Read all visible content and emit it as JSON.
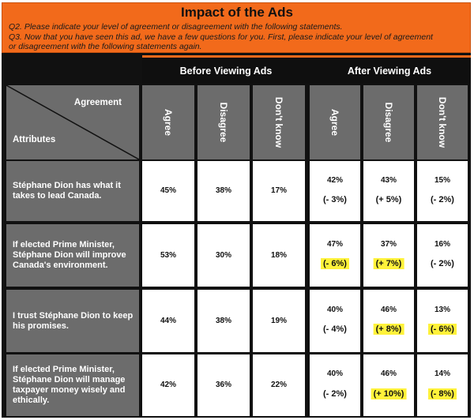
{
  "title": "Impact of the Ads",
  "q2": "Q2. Please indicate your level of agreement or disagreement with the following statements.",
  "q3_line1": "Q3. Now that you have seen this ad, we have a few questions for you. First, please indicate your level of agreement",
  "q3_line2": "or disagreement with the following statements again.",
  "groups": {
    "before": "Before Viewing Ads",
    "after": "After Viewing Ads"
  },
  "corner": {
    "agreement": "Agreement",
    "attributes": "Attributes"
  },
  "columns": [
    "Agree",
    "Disagree",
    "Don't know"
  ],
  "colors": {
    "accent": "#f26a1b",
    "highlight": "#fff23a",
    "row_label_bg": "#6c6c6c"
  },
  "chart_data": {
    "type": "table",
    "title": "Impact of the Ads",
    "column_groups": [
      "Before Viewing Ads",
      "After Viewing Ads"
    ],
    "columns": [
      "Agree",
      "Disagree",
      "Don't know"
    ],
    "rows": [
      {
        "attribute": "Stéphane Dion has what it takes to lead Canada.",
        "before": [
          "45%",
          "38%",
          "17%"
        ],
        "after": [
          "42%",
          "43%",
          "15%"
        ],
        "change": [
          "(- 3%)",
          "(+ 5%)",
          "(- 2%)"
        ],
        "highlight": [
          false,
          false,
          false
        ]
      },
      {
        "attribute": "If elected Prime Minister, Stéphane Dion will improve Canada's environment.",
        "before": [
          "53%",
          "30%",
          "18%"
        ],
        "after": [
          "47%",
          "37%",
          "16%"
        ],
        "change": [
          "(- 6%)",
          "(+ 7%)",
          "(- 2%)"
        ],
        "highlight": [
          true,
          true,
          false
        ]
      },
      {
        "attribute": "I trust Stéphane Dion to keep his promises.",
        "before": [
          "44%",
          "38%",
          "19%"
        ],
        "after": [
          "40%",
          "46%",
          "13%"
        ],
        "change": [
          "(- 4%)",
          "(+ 8%)",
          "(- 6%)"
        ],
        "highlight": [
          false,
          true,
          true
        ]
      },
      {
        "attribute": "If elected Prime Minister, Stéphane Dion will manage taxpayer money wisely and ethically.",
        "before": [
          "42%",
          "36%",
          "22%"
        ],
        "after": [
          "40%",
          "46%",
          "14%"
        ],
        "change": [
          "(- 2%)",
          "(+ 10%)",
          "(- 8%)"
        ],
        "highlight": [
          false,
          true,
          true
        ]
      }
    ]
  }
}
